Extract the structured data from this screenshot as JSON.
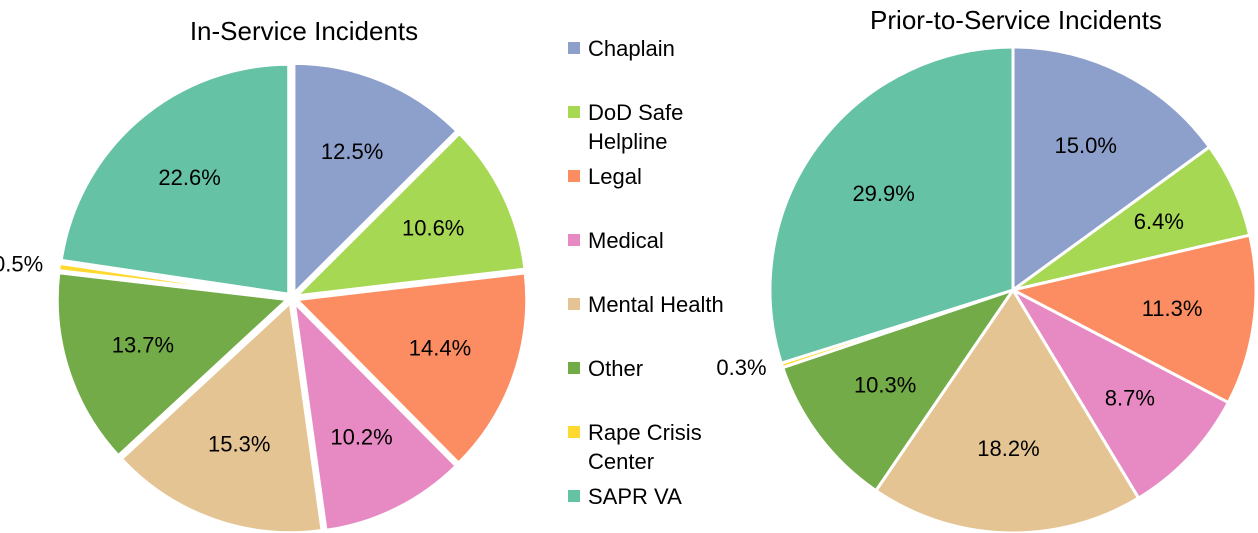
{
  "chart_data": [
    {
      "type": "pie",
      "title": "In-Service Incidents",
      "categories": [
        "Chaplain",
        "DoD Safe Helpline",
        "Legal",
        "Medical",
        "Mental Health",
        "Other",
        "Rape Crisis Center",
        "SAPR VA"
      ],
      "values": [
        12.5,
        10.6,
        14.4,
        10.2,
        15.3,
        13.7,
        0.5,
        22.6
      ],
      "value_labels": [
        "12.5%",
        "10.6%",
        "14.4%",
        "10.2%",
        "15.3%",
        "13.7%",
        "0.5%",
        "22.6%"
      ],
      "colors": [
        "#8da0cb",
        "#a6d854",
        "#fc8d62",
        "#e78ac3",
        "#e5c494",
        "#72ab48",
        "#ffd92f",
        "#66c2a5"
      ],
      "exploded": true
    },
    {
      "type": "pie",
      "title": "Prior-to-Service Incidents",
      "categories": [
        "Chaplain",
        "DoD Safe Helpline",
        "Legal",
        "Medical",
        "Mental Health",
        "Other",
        "Rape Crisis Center",
        "SAPR VA"
      ],
      "values": [
        15.0,
        6.4,
        11.3,
        8.7,
        18.2,
        10.3,
        0.3,
        29.9
      ],
      "value_labels": [
        "15.0%",
        "6.4%",
        "11.3%",
        "8.7%",
        "18.2%",
        "10.3%",
        "0.3%",
        "29.9%"
      ],
      "colors": [
        "#8da0cb",
        "#a6d854",
        "#fc8d62",
        "#e78ac3",
        "#e5c494",
        "#72ab48",
        "#ffd92f",
        "#66c2a5"
      ],
      "exploded": false
    }
  ]
}
